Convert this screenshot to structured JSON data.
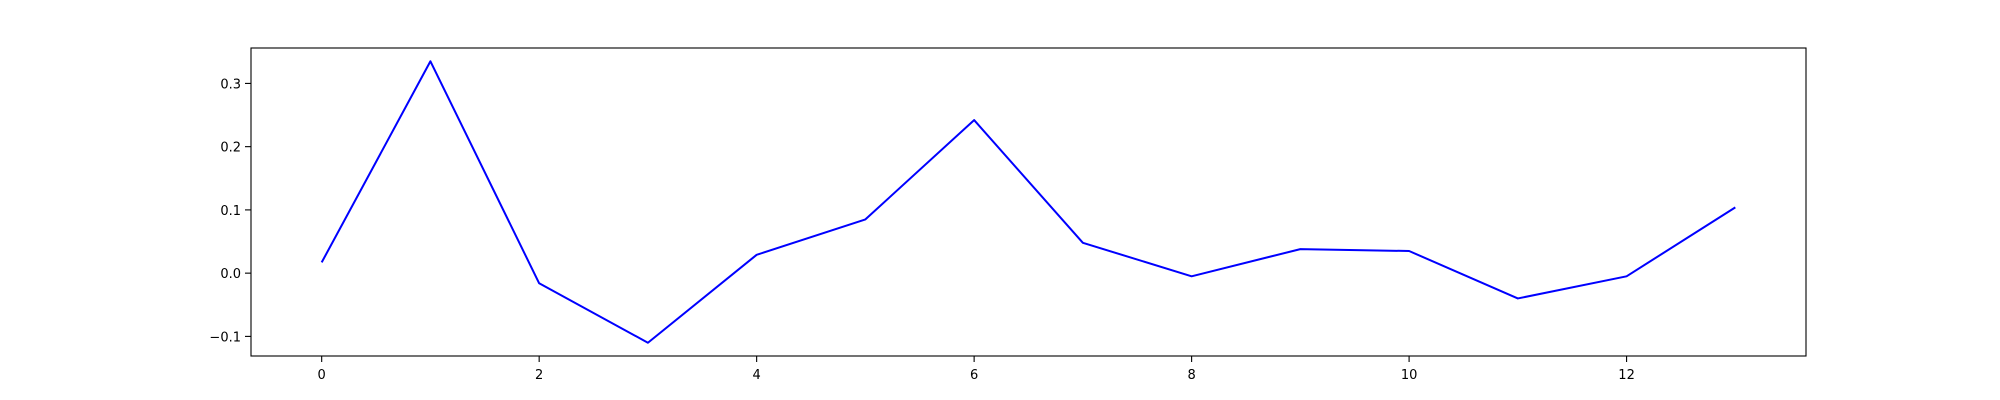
{
  "chart_data": {
    "type": "line",
    "title": "",
    "xlabel": "",
    "ylabel": "",
    "xlim": [
      -0.65,
      13.65
    ],
    "ylim": [
      -0.131,
      0.356
    ],
    "x_ticks": [
      0,
      2,
      4,
      6,
      8,
      10,
      12
    ],
    "x_tick_labels": [
      "0",
      "2",
      "4",
      "6",
      "8",
      "10",
      "12"
    ],
    "y_ticks": [
      -0.1,
      0.0,
      0.1,
      0.2,
      0.3
    ],
    "y_tick_labels": [
      "−0.1",
      "0.0",
      "0.1",
      "0.2",
      "0.3"
    ],
    "grid": false,
    "legend": "none",
    "series": [
      {
        "color": "#0000ff",
        "x": [
          0,
          1,
          2,
          3,
          4,
          5,
          6,
          7,
          8,
          9,
          10,
          11,
          12,
          13
        ],
        "y": [
          0.017,
          0.335,
          -0.016,
          -0.11,
          0.029,
          0.085,
          0.242,
          0.048,
          -0.005,
          0.038,
          0.035,
          -0.04,
          -0.005,
          0.104
        ]
      }
    ]
  }
}
